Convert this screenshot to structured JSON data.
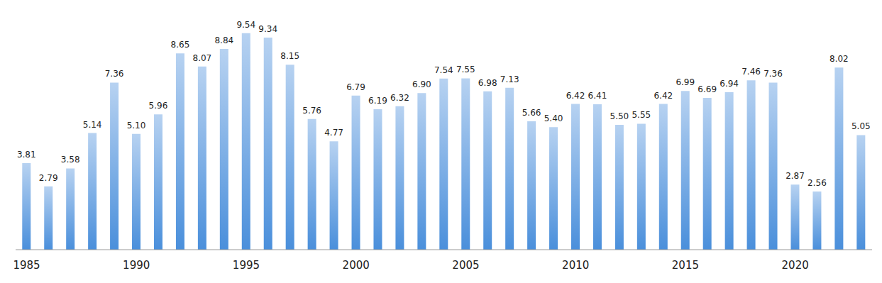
{
  "chart_data": {
    "type": "bar",
    "categories": [
      1985,
      null,
      null,
      null,
      null,
      1990,
      null,
      null,
      null,
      null,
      1995,
      null,
      null,
      null,
      null,
      2000,
      null,
      null,
      null,
      null,
      2005,
      null,
      null,
      null,
      null,
      2010,
      null,
      null,
      null,
      null,
      2015,
      null,
      null,
      null,
      null,
      2020,
      null,
      null,
      null
    ],
    "values": [
      3.81,
      2.79,
      3.58,
      5.14,
      7.36,
      5.1,
      5.96,
      8.65,
      8.07,
      8.84,
      9.54,
      9.34,
      8.15,
      5.76,
      4.77,
      6.79,
      6.19,
      6.32,
      6.9,
      7.54,
      7.55,
      6.98,
      7.13,
      5.66,
      5.4,
      6.42,
      6.41,
      5.5,
      5.55,
      6.42,
      6.99,
      6.69,
      6.94,
      7.46,
      7.36,
      2.87,
      2.56,
      8.02,
      5.05
    ],
    "value_labels": [
      "3.81",
      "2.79",
      "3.58",
      "5.14",
      "7.36",
      "5.10",
      "5.96",
      "8.65",
      "8.07",
      "8.84",
      "9.54",
      "9.34",
      "8.15",
      "5.76",
      "4.77",
      "6.79",
      "6.19",
      "6.32",
      "6.90",
      "7.54",
      "7.55",
      "6.98",
      "7.13",
      "5.66",
      "5.40",
      "6.42",
      "6.41",
      "5.50",
      "5.55",
      "6.42",
      "6.99",
      "6.69",
      "6.94",
      "7.46",
      "7.36",
      "2.87",
      "2.56",
      "8.02",
      "5.05"
    ],
    "color": "#4a8fdb",
    "ylim": [
      0,
      10
    ],
    "data_labels": true,
    "tick_labels": "x",
    "grid": false
  }
}
